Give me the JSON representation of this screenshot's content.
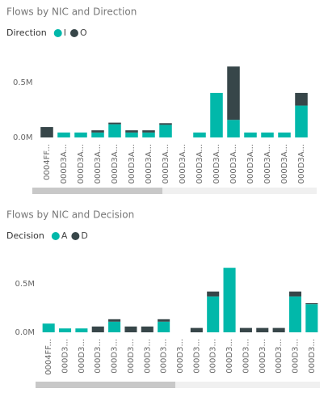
{
  "chart_data": [
    {
      "type": "bar",
      "stacked": true,
      "title": "Flows by NIC and Direction",
      "legend_title": "Direction",
      "categories": [
        "0004FF...",
        "000D3A...",
        "000D3A...",
        "000D3A...",
        "000D3A...",
        "000D3A...",
        "000D3A...",
        "000D3A...",
        "000D3A...",
        "000D3A...",
        "000D3A...",
        "000D3A...",
        "000D3A...",
        "000D3A...",
        "000D3A...",
        "000D3A..."
      ],
      "series": [
        {
          "name": "I",
          "color": "#01B8AA",
          "values": [
            0,
            0.045,
            0.045,
            0.045,
            0.12,
            0.045,
            0.045,
            0.115,
            0,
            0.045,
            0.405,
            0.16,
            0.045,
            0.045,
            0.045,
            0.29
          ]
        },
        {
          "name": "O",
          "color": "#374649",
          "values": [
            0.095,
            0,
            0,
            0.02,
            0.015,
            0.02,
            0.02,
            0.015,
            0,
            0,
            0,
            0.485,
            0,
            0,
            0,
            0.115
          ]
        }
      ],
      "ylim": [
        0,
        0.8
      ],
      "yticks": [
        {
          "value": 0,
          "label": "0.0M"
        },
        {
          "value": 0.5,
          "label": "0.5M"
        }
      ],
      "grid": false
    },
    {
      "type": "bar",
      "stacked": true,
      "title": "Flows by NIC and Decision",
      "legend_title": "Decision",
      "categories": [
        "0004FF...",
        "000D3...",
        "000D3...",
        "000D3...",
        "000D3...",
        "000D3...",
        "000D3...",
        "000D3...",
        "000D3...",
        "000D3...",
        "000D3...",
        "000D3...",
        "000D3...",
        "000D3...",
        "000D3...",
        "000D3...",
        "000D3..."
      ],
      "series": [
        {
          "name": "A",
          "color": "#01B8AA",
          "values": [
            0.09,
            0.04,
            0.04,
            0,
            0.11,
            0,
            0,
            0.11,
            0,
            0,
            0.37,
            0.665,
            0,
            0,
            0,
            0.37,
            0.29
          ]
        },
        {
          "name": "D",
          "color": "#374649",
          "values": [
            0,
            0,
            0,
            0.06,
            0.025,
            0.06,
            0.06,
            0.025,
            0,
            0.045,
            0.05,
            0,
            0.045,
            0.045,
            0.045,
            0.05,
            0.01
          ]
        }
      ],
      "ylim": [
        0,
        0.8
      ],
      "yticks": [
        {
          "value": 0,
          "label": "0.0M"
        },
        {
          "value": 0.5,
          "label": "0.5M"
        }
      ],
      "grid": false
    }
  ]
}
